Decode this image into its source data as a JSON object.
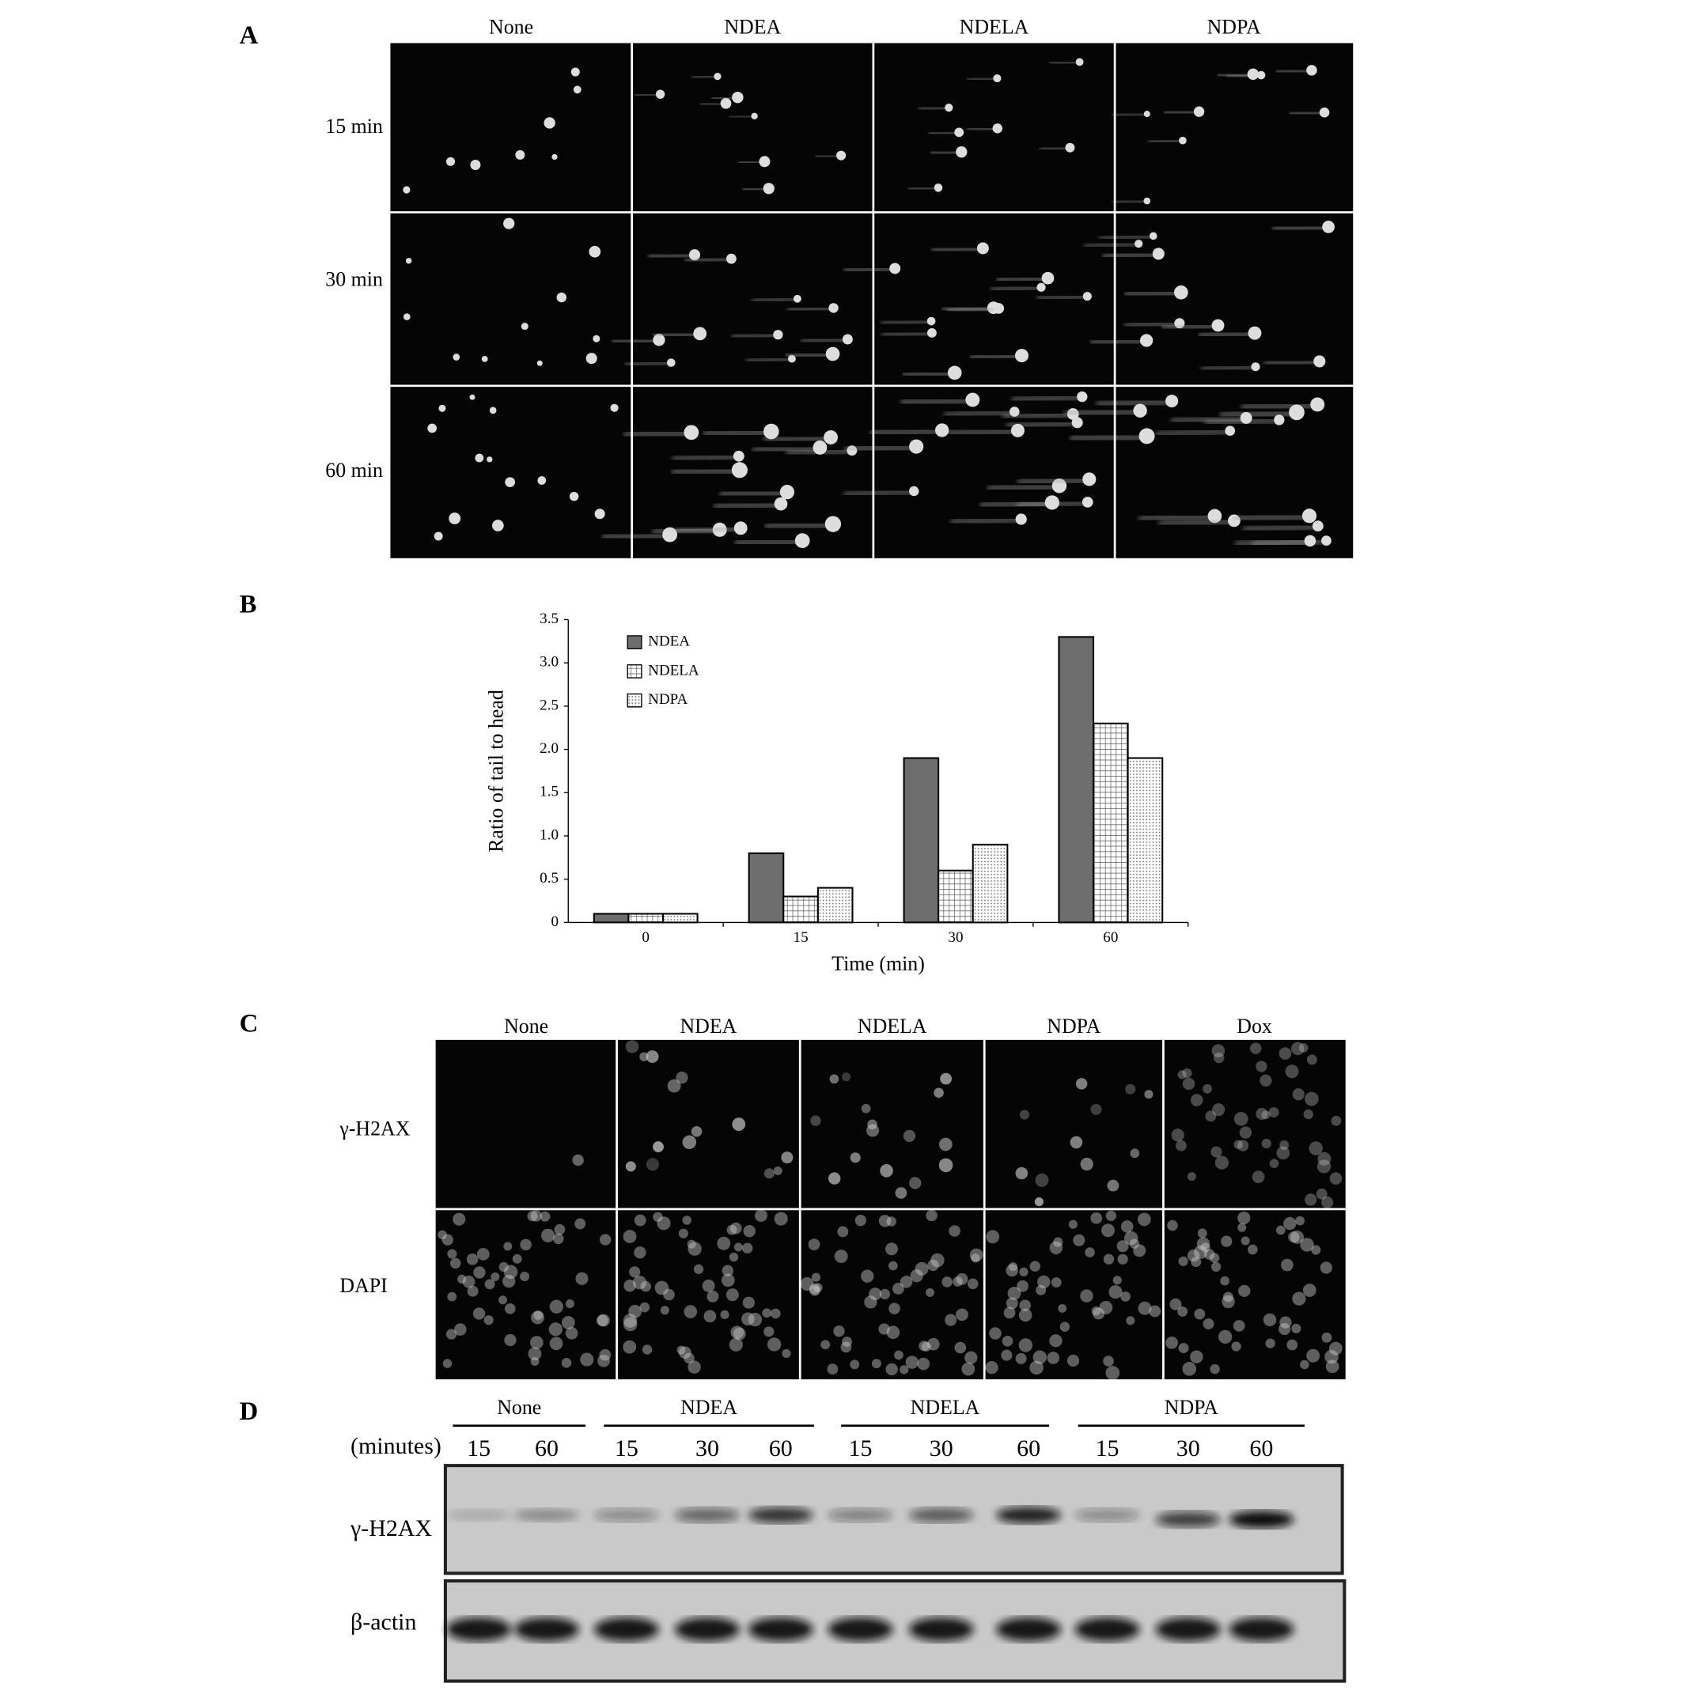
{
  "panel_a": {
    "label": "A",
    "columns": [
      "None",
      "NDEA",
      "NDELA",
      "NDPA"
    ],
    "rows": [
      "15 min",
      "30 min",
      "60 min"
    ]
  },
  "chart_data": {
    "type": "bar",
    "label": "B",
    "x_label": "Time (min)",
    "y_label": "Ratio of tail to head",
    "categories": [
      "0",
      "15",
      "30",
      "60"
    ],
    "series": [
      {
        "name": "NDEA",
        "color": "#6e6e6e",
        "pattern": "solid",
        "values": [
          0.1,
          0.8,
          1.9,
          3.3
        ]
      },
      {
        "name": "NDELA",
        "color": "#ffffff",
        "pattern": "grid",
        "values": [
          0.1,
          0.3,
          0.6,
          2.3
        ]
      },
      {
        "name": "NDPA",
        "color": "#ffffff",
        "pattern": "dots",
        "values": [
          0.1,
          0.4,
          0.9,
          1.9
        ]
      }
    ],
    "ylim": [
      0,
      3.5
    ],
    "yticks": [
      0,
      0.5,
      {
        "value": 1,
        "label": "1.0"
      },
      1.5,
      {
        "value": 2,
        "label": "2.0"
      },
      2.5,
      {
        "value": 3,
        "label": "3.0"
      },
      3.5
    ],
    "legend": "upper left"
  },
  "panel_c": {
    "label": "C",
    "columns": [
      "None",
      "NDEA",
      "NDELA",
      "NDPA",
      "Dox"
    ],
    "rows": [
      "γ-H2AX",
      "DAPI"
    ]
  },
  "panel_d": {
    "label": "D",
    "unit_label": "(minutes)",
    "groups": [
      {
        "name": "None",
        "lanes": [
          "15",
          "60"
        ]
      },
      {
        "name": "NDEA",
        "lanes": [
          "15",
          "30",
          "60"
        ]
      },
      {
        "name": "NDELA",
        "lanes": [
          "15",
          "30",
          "60"
        ]
      },
      {
        "name": "NDPA",
        "lanes": [
          "15",
          "30",
          "60"
        ]
      }
    ],
    "rows": [
      "γ-H2AX",
      "β-actin"
    ]
  }
}
